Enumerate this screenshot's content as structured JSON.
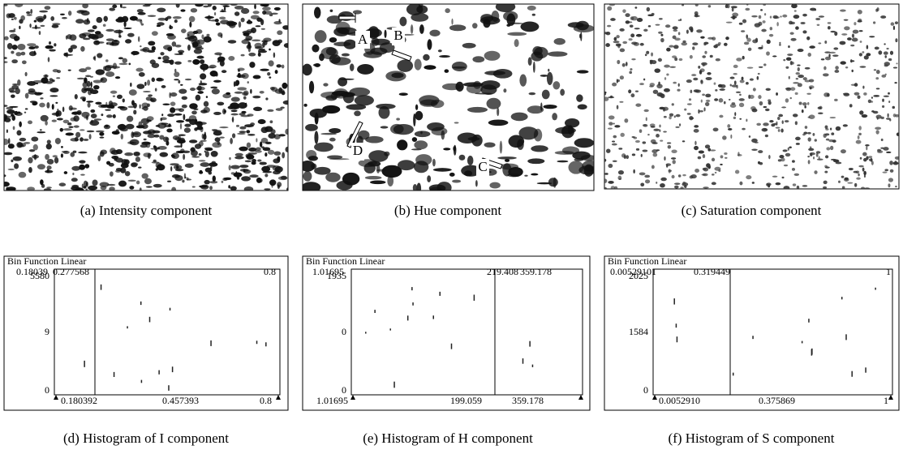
{
  "images": [
    {
      "caption": "(a) Intensity component"
    },
    {
      "caption": "(b) Hue component",
      "labels": [
        "A",
        "B",
        "C",
        "D"
      ]
    },
    {
      "caption": "(c) Saturation component"
    }
  ],
  "histograms": [
    {
      "caption": "(d) Histogram of I component",
      "header": "Bin Function  Linear",
      "top_labels": [
        "0.18039",
        "0.277568",
        "0.8"
      ],
      "y_labels": [
        "5580",
        "9",
        "0"
      ],
      "bottom_labels": [
        "0.180392",
        "0.457393",
        "0.8"
      ]
    },
    {
      "caption": "(e) Histogram of H component",
      "header": "Bin Function  Linear",
      "top_labels": [
        "1.01695",
        "219.408",
        "359.178"
      ],
      "y_labels": [
        "1935",
        "0",
        "0"
      ],
      "bottom_labels": [
        "1.01695",
        "199.059",
        "359.178"
      ]
    },
    {
      "caption": "(f) Histogram of S component",
      "header": "Bin Function  Linear",
      "top_labels": [
        "0.00529101",
        "0.319449",
        "1"
      ],
      "y_labels": [
        "2025",
        "1584",
        "0"
      ],
      "bottom_labels": [
        "0.0052910",
        "0.375869",
        "1"
      ]
    }
  ]
}
